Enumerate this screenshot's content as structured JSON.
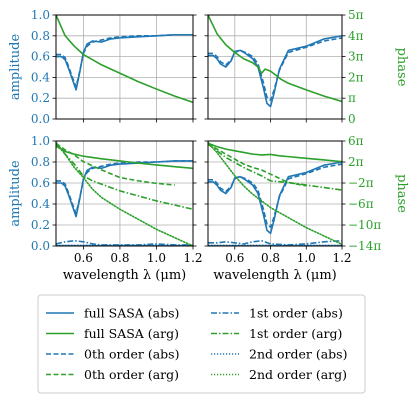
{
  "colors": {
    "blue": "#1f77b4",
    "green": "#2ca02c",
    "grid": "#b0b0b0",
    "axis": "#000000"
  },
  "chart_data": [
    {
      "type": "line",
      "panel": "top-left",
      "xlabel": "",
      "ylabel_left": "amplitude",
      "ylabel_right": "",
      "xlim": [
        0.45,
        1.2
      ],
      "ylim_left": [
        0,
        1.0
      ],
      "ylim_right": [
        0,
        15.708
      ],
      "grid": true,
      "left_ticks": [
        "0.0",
        "0.2",
        "0.4",
        "0.6",
        "0.8",
        "1.0"
      ],
      "right_ticks": [],
      "x_ticks": [],
      "series": [
        {
          "name": "full SASA (abs)",
          "axis": "left",
          "color": "blue",
          "dash": "solid",
          "x": [
            0.45,
            0.48,
            0.5,
            0.52,
            0.54,
            0.56,
            0.58,
            0.6,
            0.62,
            0.65,
            0.7,
            0.75,
            0.8,
            0.9,
            1.0,
            1.1,
            1.2
          ],
          "y": [
            0.6,
            0.6,
            0.57,
            0.48,
            0.38,
            0.28,
            0.45,
            0.64,
            0.72,
            0.75,
            0.74,
            0.77,
            0.78,
            0.79,
            0.8,
            0.81,
            0.81
          ]
        },
        {
          "name": "0th order (abs)",
          "axis": "left",
          "color": "blue",
          "dash": "dashed",
          "x": [
            0.45,
            0.48,
            0.5,
            0.52,
            0.54,
            0.56,
            0.58,
            0.6,
            0.62,
            0.65,
            0.7,
            0.75,
            0.8,
            0.9,
            1.0,
            1.1,
            1.2
          ],
          "y": [
            0.62,
            0.62,
            0.59,
            0.5,
            0.4,
            0.31,
            0.46,
            0.63,
            0.7,
            0.74,
            0.76,
            0.78,
            0.79,
            0.8,
            0.8,
            0.81,
            0.81
          ]
        },
        {
          "name": "full SASA (arg)",
          "axis": "right",
          "color": "green",
          "dash": "solid",
          "x": [
            0.45,
            0.5,
            0.55,
            0.6,
            0.7,
            0.8,
            0.9,
            1.0,
            1.1,
            1.2
          ],
          "y": [
            15.708,
            12.57,
            11.0,
            9.74,
            8.17,
            6.91,
            5.65,
            4.52,
            3.46,
            2.51
          ]
        }
      ]
    },
    {
      "type": "line",
      "panel": "top-right",
      "xlabel": "",
      "ylabel_left": "",
      "ylabel_right": "phase",
      "xlim": [
        0.45,
        1.2
      ],
      "ylim_left": [
        0,
        1.0
      ],
      "ylim_right": [
        0,
        15.708
      ],
      "grid": true,
      "left_ticks": [],
      "right_ticks": [
        "0",
        "π",
        "2π",
        "3π",
        "4π",
        "5π"
      ],
      "x_ticks": [],
      "series": [
        {
          "name": "full SASA (abs)",
          "axis": "left",
          "color": "blue",
          "dash": "solid",
          "x": [
            0.45,
            0.48,
            0.5,
            0.52,
            0.55,
            0.58,
            0.6,
            0.63,
            0.66,
            0.7,
            0.73,
            0.76,
            0.78,
            0.8,
            0.82,
            0.85,
            0.9,
            1.0,
            1.1,
            1.2
          ],
          "y": [
            0.61,
            0.61,
            0.58,
            0.53,
            0.5,
            0.56,
            0.65,
            0.66,
            0.63,
            0.58,
            0.5,
            0.3,
            0.15,
            0.12,
            0.25,
            0.48,
            0.66,
            0.7,
            0.77,
            0.8
          ]
        },
        {
          "name": "0th order (abs)",
          "axis": "left",
          "color": "blue",
          "dash": "dashed",
          "x": [
            0.45,
            0.48,
            0.5,
            0.52,
            0.55,
            0.58,
            0.6,
            0.63,
            0.66,
            0.7,
            0.73,
            0.76,
            0.78,
            0.8,
            0.82,
            0.85,
            0.9,
            1.0,
            1.1,
            1.2
          ],
          "y": [
            0.63,
            0.63,
            0.6,
            0.55,
            0.52,
            0.57,
            0.64,
            0.66,
            0.64,
            0.6,
            0.53,
            0.35,
            0.21,
            0.18,
            0.28,
            0.47,
            0.64,
            0.69,
            0.75,
            0.78
          ]
        },
        {
          "name": "full SASA (arg)",
          "axis": "right",
          "color": "green",
          "dash": "solid",
          "x": [
            0.45,
            0.5,
            0.55,
            0.6,
            0.65,
            0.7,
            0.73,
            0.75,
            0.77,
            0.8,
            0.83,
            0.86,
            0.9,
            1.0,
            1.1,
            1.2
          ],
          "y": [
            15.7,
            12.9,
            11.2,
            10.05,
            9.1,
            8.5,
            7.85,
            6.91,
            7.54,
            7.23,
            6.6,
            5.97,
            5.4,
            4.4,
            3.46,
            2.64
          ]
        }
      ]
    },
    {
      "type": "line",
      "panel": "bottom-left",
      "xlabel": "wavelength λ (μm)",
      "ylabel_left": "amplitude",
      "ylabel_right": "",
      "xlim": [
        0.45,
        1.2
      ],
      "ylim_left": [
        0,
        1.0
      ],
      "ylim_right": [
        -43.98,
        18.85
      ],
      "grid": true,
      "left_ticks": [
        "0.0",
        "0.2",
        "0.4",
        "0.6",
        "0.8",
        "1.0"
      ],
      "right_ticks": [],
      "x_ticks": [
        "0.6",
        "0.8",
        "1.0",
        "1.2"
      ],
      "series": [
        {
          "name": "full SASA (abs)",
          "axis": "left",
          "color": "blue",
          "dash": "solid",
          "x": [
            0.45,
            0.48,
            0.5,
            0.52,
            0.54,
            0.56,
            0.58,
            0.6,
            0.62,
            0.65,
            0.7,
            0.75,
            0.8,
            0.9,
            1.0,
            1.1,
            1.2
          ],
          "y": [
            0.6,
            0.6,
            0.57,
            0.48,
            0.38,
            0.28,
            0.45,
            0.64,
            0.72,
            0.75,
            0.74,
            0.77,
            0.78,
            0.79,
            0.8,
            0.81,
            0.81
          ]
        },
        {
          "name": "0th order (abs)",
          "axis": "left",
          "color": "blue",
          "dash": "dashed",
          "x": [
            0.45,
            0.48,
            0.5,
            0.52,
            0.54,
            0.56,
            0.58,
            0.6,
            0.62,
            0.65,
            0.7,
            0.75,
            0.8,
            0.9,
            1.0,
            1.1,
            1.2
          ],
          "y": [
            0.62,
            0.62,
            0.59,
            0.5,
            0.4,
            0.31,
            0.46,
            0.63,
            0.7,
            0.74,
            0.76,
            0.78,
            0.79,
            0.8,
            0.8,
            0.81,
            0.81
          ]
        },
        {
          "name": "1st order (abs)",
          "axis": "left",
          "color": "blue",
          "dash": "dashdot",
          "x": [
            0.45,
            0.5,
            0.55,
            0.6,
            0.65,
            0.7,
            0.8,
            0.9,
            1.0,
            1.1,
            1.2
          ],
          "y": [
            0.02,
            0.04,
            0.05,
            0.04,
            0.02,
            0.01,
            0.01,
            0.01,
            0.02,
            0.01,
            0.01
          ]
        },
        {
          "name": "2nd order (abs)",
          "axis": "left",
          "color": "blue",
          "dash": "dotted",
          "x": [
            0.45,
            0.6,
            0.8,
            1.0,
            1.2
          ],
          "y": [
            0.005,
            0.005,
            0.005,
            0.005,
            0.005
          ]
        },
        {
          "name": "full SASA (arg)",
          "axis": "right",
          "color": "green",
          "dash": "solid",
          "x": [
            0.45,
            0.5,
            0.55,
            0.6,
            0.7,
            0.8,
            0.9,
            1.0,
            1.1,
            1.2
          ],
          "y": [
            15.708,
            12.57,
            11.0,
            9.74,
            8.17,
            6.91,
            5.65,
            4.52,
            3.46,
            2.51
          ]
        },
        {
          "name": "0th order (arg)",
          "axis": "right",
          "color": "green",
          "dash": "dashed",
          "x": [
            0.45,
            0.5,
            0.55,
            0.6,
            0.7,
            0.8,
            0.9,
            1.0,
            1.1
          ],
          "y": [
            17.5,
            13.5,
            10.5,
            6.5,
            1.5,
            -3.0,
            -5.0,
            -6.5,
            -7.5
          ]
        },
        {
          "name": "1st order (arg)",
          "axis": "right",
          "color": "green",
          "dash": "dashdot",
          "x": [
            0.45,
            0.5,
            0.55,
            0.6,
            0.65,
            0.7,
            0.8,
            0.9,
            1.0,
            1.1,
            1.2
          ],
          "y": [
            17.0,
            11.0,
            5.0,
            -2.0,
            -5.0,
            -7.0,
            -11.0,
            -14.0,
            -17.0,
            -19.5,
            -22.0
          ]
        },
        {
          "name": "2nd order (arg)",
          "axis": "right",
          "color": "green",
          "dash": "dotted",
          "x": [
            0.45,
            0.5,
            0.55,
            0.6,
            0.65,
            0.7,
            0.8,
            0.9,
            1.0,
            1.1,
            1.2
          ],
          "y": [
            18.0,
            11.0,
            3.0,
            -3.0,
            -10.0,
            -15.0,
            -22.0,
            -28.0,
            -34.0,
            -39.0,
            -44.0
          ]
        }
      ]
    },
    {
      "type": "line",
      "panel": "bottom-right",
      "xlabel": "wavelength λ (μm)",
      "ylabel_left": "",
      "ylabel_right": "phase",
      "xlim": [
        0.45,
        1.2
      ],
      "ylim_left": [
        0,
        1.0
      ],
      "ylim_right": [
        -43.98,
        18.85
      ],
      "grid": true,
      "left_ticks": [],
      "right_ticks": [
        "6π",
        "2π",
        "−2π",
        "−6π",
        "−10π",
        "−14π"
      ],
      "x_ticks": [
        "0.6",
        "0.8",
        "1.0",
        "1.2"
      ],
      "series": [
        {
          "name": "full SASA (abs)",
          "axis": "left",
          "color": "blue",
          "dash": "solid",
          "x": [
            0.45,
            0.48,
            0.5,
            0.52,
            0.55,
            0.58,
            0.6,
            0.63,
            0.66,
            0.7,
            0.73,
            0.76,
            0.78,
            0.8,
            0.82,
            0.85,
            0.9,
            1.0,
            1.1,
            1.2
          ],
          "y": [
            0.61,
            0.61,
            0.58,
            0.53,
            0.5,
            0.56,
            0.65,
            0.66,
            0.63,
            0.58,
            0.5,
            0.3,
            0.15,
            0.12,
            0.25,
            0.48,
            0.66,
            0.7,
            0.77,
            0.8
          ]
        },
        {
          "name": "0th order (abs)",
          "axis": "left",
          "color": "blue",
          "dash": "dashed",
          "x": [
            0.45,
            0.48,
            0.5,
            0.52,
            0.55,
            0.58,
            0.6,
            0.63,
            0.66,
            0.7,
            0.73,
            0.76,
            0.78,
            0.8,
            0.82,
            0.85,
            0.9,
            1.0,
            1.1,
            1.2
          ],
          "y": [
            0.63,
            0.63,
            0.6,
            0.55,
            0.52,
            0.57,
            0.64,
            0.66,
            0.64,
            0.6,
            0.53,
            0.35,
            0.21,
            0.18,
            0.28,
            0.47,
            0.64,
            0.69,
            0.75,
            0.78
          ]
        },
        {
          "name": "1st order (abs)",
          "axis": "left",
          "color": "blue",
          "dash": "dashdot",
          "x": [
            0.45,
            0.5,
            0.55,
            0.6,
            0.65,
            0.7,
            0.75,
            0.8,
            0.9,
            1.0,
            1.1,
            1.2
          ],
          "y": [
            0.03,
            0.03,
            0.04,
            0.03,
            0.02,
            0.04,
            0.05,
            0.02,
            0.01,
            0.02,
            0.04,
            0.05
          ]
        },
        {
          "name": "2nd order (abs)",
          "axis": "left",
          "color": "blue",
          "dash": "dotted",
          "x": [
            0.45,
            0.6,
            0.8,
            1.0,
            1.2
          ],
          "y": [
            0.005,
            0.005,
            0.005,
            0.005,
            0.005
          ]
        },
        {
          "name": "full SASA (arg)",
          "axis": "right",
          "color": "green",
          "dash": "solid",
          "x": [
            0.45,
            0.5,
            0.55,
            0.6,
            0.65,
            0.7,
            0.75,
            0.8,
            0.85,
            0.9,
            1.0,
            1.1,
            1.2
          ],
          "y": [
            17.5,
            15.5,
            14.0,
            13.0,
            12.0,
            11.0,
            10.5,
            10.8,
            10.0,
            9.5,
            8.5,
            7.5,
            6.5
          ]
        },
        {
          "name": "0th order (arg)",
          "axis": "right",
          "color": "green",
          "dash": "dashed",
          "x": [
            0.45,
            0.5,
            0.55,
            0.6,
            0.65,
            0.7,
            0.75,
            0.8,
            0.85,
            0.9,
            1.0
          ],
          "y": [
            17.5,
            14.0,
            11.0,
            8.0,
            5.0,
            3.0,
            1.5,
            -1.0,
            -3.5,
            -6.0,
            -8.0
          ]
        },
        {
          "name": "1st order (arg)",
          "axis": "right",
          "color": "green",
          "dash": "dashdot",
          "x": [
            0.45,
            0.5,
            0.55,
            0.6,
            0.65,
            0.7,
            0.75,
            0.8,
            0.9,
            1.0,
            1.1,
            1.2
          ],
          "y": [
            17.0,
            13.0,
            9.0,
            6.0,
            3.0,
            0.5,
            -2.0,
            -5.0,
            -6.0,
            -7.5,
            -9.0,
            -10.5
          ]
        },
        {
          "name": "2nd order (arg)",
          "axis": "right",
          "color": "green",
          "dash": "dotted",
          "x": [
            0.45,
            0.5,
            0.55,
            0.6,
            0.65,
            0.7,
            0.8,
            0.9,
            1.0,
            1.1,
            1.2
          ],
          "y": [
            18.0,
            12.0,
            5.0,
            -2.0,
            -8.0,
            -13.0,
            -21.0,
            -27.0,
            -33.0,
            -38.0,
            -43.0
          ]
        }
      ]
    }
  ],
  "legend": {
    "items": [
      {
        "label": "full SASA (abs)",
        "color": "blue",
        "dash": "solid"
      },
      {
        "label": "1st order (abs)",
        "color": "blue",
        "dash": "dashdot"
      },
      {
        "label": "full SASA (arg)",
        "color": "green",
        "dash": "solid"
      },
      {
        "label": "1st order (arg)",
        "color": "green",
        "dash": "dashdot"
      },
      {
        "label": "0th order (abs)",
        "color": "blue",
        "dash": "dashed"
      },
      {
        "label": "2nd order (abs)",
        "color": "blue",
        "dash": "dotted"
      },
      {
        "label": "0th order (arg)",
        "color": "green",
        "dash": "dashed"
      },
      {
        "label": "2nd order (arg)",
        "color": "green",
        "dash": "dotted"
      }
    ]
  }
}
